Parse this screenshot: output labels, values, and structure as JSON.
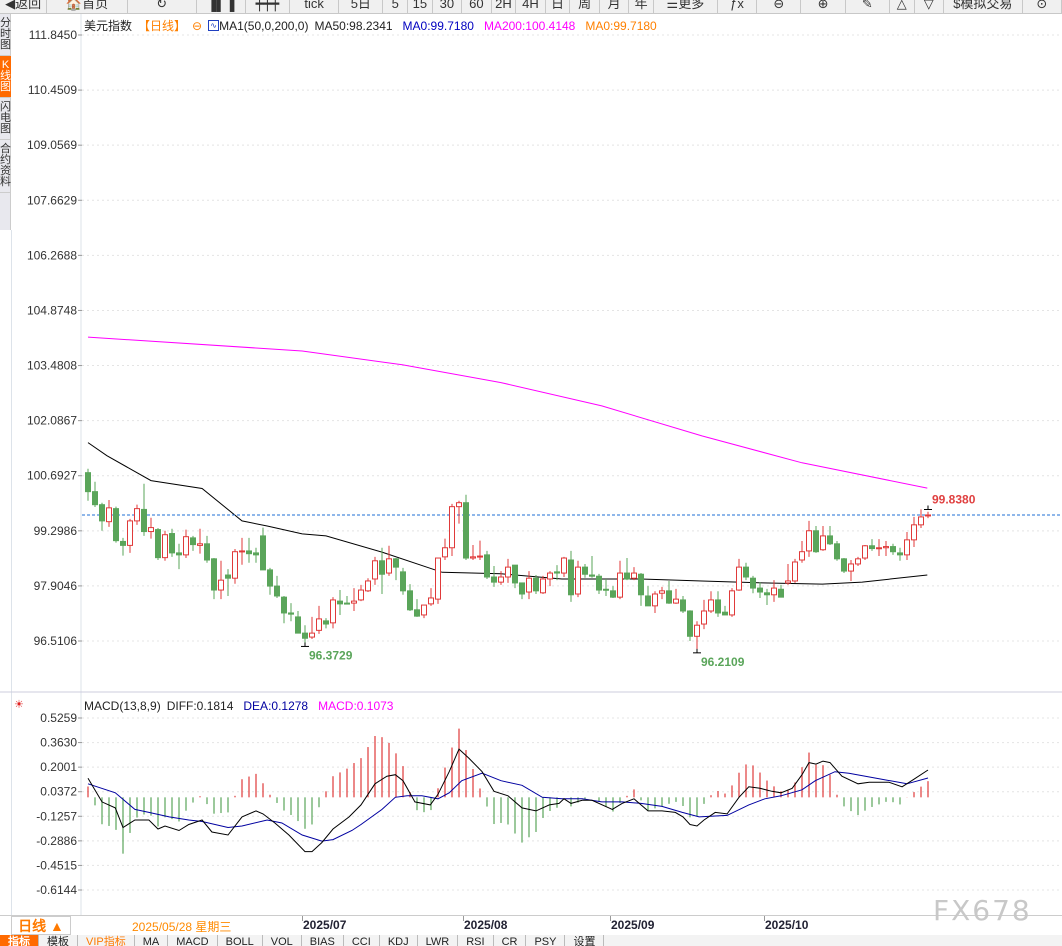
{
  "toolbar": {
    "items": [
      {
        "label": "◀返回",
        "icon": "back-arrow-icon",
        "w": 48
      },
      {
        "label": "🏠首页",
        "icon": "home-icon",
        "w": 82
      },
      {
        "label": "↻",
        "icon": "refresh-icon",
        "w": 70
      },
      {
        "label": "▐▌▐",
        "icon": "bar-chart-icon",
        "w": 50
      },
      {
        "label": "┿┿┿",
        "icon": "candlestick-icon",
        "w": 45
      },
      {
        "label": "tick",
        "w": 50
      },
      {
        "label": "5日",
        "w": 45
      },
      {
        "label": "5",
        "w": 25
      },
      {
        "label": "15",
        "w": 25
      },
      {
        "label": "30",
        "w": 30
      },
      {
        "label": "60",
        "w": 30
      },
      {
        "label": "2H",
        "w": 25
      },
      {
        "label": "4H",
        "w": 30
      },
      {
        "label": "日",
        "w": 25
      },
      {
        "label": "周",
        "w": 30
      },
      {
        "label": "月",
        "w": 30
      },
      {
        "label": "年",
        "w": 25
      },
      {
        "label": "☰更多",
        "icon": "menu-icon",
        "w": 65
      },
      {
        "label": "ƒx",
        "icon": "formula-icon",
        "w": 40
      },
      {
        "label": "⊖",
        "icon": "zoom-out-icon",
        "w": 45
      },
      {
        "label": "⊕",
        "icon": "zoom-in-icon",
        "w": 45
      },
      {
        "label": "✎",
        "icon": "pen-icon",
        "w": 45
      },
      {
        "label": "△",
        "icon": "triangle-icon",
        "w": 25
      },
      {
        "label": "▽",
        "icon": "triangle-down-icon",
        "w": 30
      },
      {
        "label": "$模拟交易",
        "icon": "dollar-icon",
        "w": 80
      },
      {
        "label": "⊙",
        "w": 40
      }
    ]
  },
  "sidebar": [
    {
      "label": "分时图"
    },
    {
      "label": "K线图",
      "active": true
    },
    {
      "label": "闪电图"
    },
    {
      "label": "合约资料"
    }
  ],
  "header": {
    "name": "美元指数",
    "period": "【日线】",
    "ma_label": "MA1(50,0,200,0)",
    "ma50": "MA50:98.2341",
    "ma0a": "MA0:99.7180",
    "ma200": "MA200:100.4148",
    "ma0b": "MA0:99.7180"
  },
  "colors": {
    "up": "#e03a3a",
    "down": "#5aa55a",
    "ma50": "#000000",
    "ma200": "#ff00ff",
    "diff": "#000000",
    "dea": "#0000a0",
    "period": "#ff8000",
    "last_line": "#1f6fd6"
  },
  "price_axis": {
    "ticks": [
      "111.8450",
      "110.4509",
      "109.0569",
      "107.6629",
      "106.2688",
      "104.8748",
      "103.4808",
      "102.0867",
      "100.6927",
      "99.2986",
      "97.9046",
      "96.5106"
    ],
    "range": [
      95.24,
      112.27
    ]
  },
  "annotations": {
    "high": "99.8380",
    "high_value": 99.838,
    "high_index": 120,
    "low1": "96.3729",
    "low1_value": 96.3729,
    "low1_index": 31,
    "low2": "96.2109",
    "low2_value": 96.2109,
    "low2_index": 87,
    "last": 99.7
  },
  "candles_ohlc": [
    [
      100.77,
      100.87,
      100.06,
      100.29
    ],
    [
      100.29,
      100.54,
      99.9,
      99.96
    ],
    [
      99.96,
      100.01,
      99.3,
      99.55
    ],
    [
      99.53,
      100.08,
      99.4,
      99.88
    ],
    [
      99.86,
      99.91,
      99.0,
      99.05
    ],
    [
      99.03,
      99.12,
      98.67,
      98.93
    ],
    [
      98.93,
      99.6,
      98.74,
      99.55
    ],
    [
      99.55,
      99.96,
      99.45,
      99.86
    ],
    [
      99.84,
      100.49,
      99.17,
      99.28
    ],
    [
      99.28,
      99.63,
      99.1,
      99.38
    ],
    [
      99.33,
      99.37,
      98.56,
      98.62
    ],
    [
      98.62,
      99.3,
      98.54,
      99.2
    ],
    [
      99.23,
      99.35,
      98.64,
      98.74
    ],
    [
      98.74,
      98.97,
      98.33,
      98.69
    ],
    [
      98.69,
      99.33,
      98.61,
      99.15
    ],
    [
      99.12,
      99.17,
      98.79,
      98.95
    ],
    [
      98.93,
      99.35,
      98.72,
      98.97
    ],
    [
      98.97,
      99.17,
      98.49,
      98.56
    ],
    [
      98.59,
      98.61,
      97.57,
      97.8
    ],
    [
      97.8,
      98.54,
      97.57,
      98.05
    ],
    [
      98.18,
      98.33,
      97.65,
      98.1
    ],
    [
      98.1,
      98.84,
      97.96,
      98.77
    ],
    [
      98.77,
      99.12,
      98.44,
      98.79
    ],
    [
      98.79,
      99.12,
      98.49,
      98.72
    ],
    [
      98.74,
      98.87,
      98.49,
      98.69
    ],
    [
      99.17,
      99.38,
      98.31,
      98.31
    ],
    [
      98.31,
      98.36,
      97.68,
      97.9
    ],
    [
      97.9,
      98.16,
      97.6,
      97.65
    ],
    [
      97.62,
      97.65,
      96.96,
      97.22
    ],
    [
      97.22,
      97.47,
      97.01,
      97.19
    ],
    [
      97.12,
      97.27,
      96.71,
      96.71
    ],
    [
      96.71,
      96.91,
      96.37,
      96.58
    ],
    [
      96.61,
      97.12,
      96.56,
      96.71
    ],
    [
      96.78,
      97.4,
      96.69,
      97.07
    ],
    [
      97.02,
      97.09,
      96.83,
      96.94
    ],
    [
      96.97,
      97.62,
      96.83,
      97.55
    ],
    [
      97.52,
      97.8,
      97.17,
      97.45
    ],
    [
      97.47,
      97.65,
      97.45,
      97.45
    ],
    [
      97.47,
      97.85,
      97.27,
      97.52
    ],
    [
      97.55,
      97.93,
      97.52,
      97.8
    ],
    [
      97.78,
      98.1,
      97.75,
      98.03
    ],
    [
      98.08,
      98.64,
      97.93,
      98.54
    ],
    [
      98.54,
      98.87,
      97.7,
      98.2
    ],
    [
      98.23,
      98.92,
      98.16,
      98.59
    ],
    [
      98.59,
      98.61,
      98.05,
      98.38
    ],
    [
      98.26,
      98.36,
      97.68,
      97.78
    ],
    [
      97.78,
      97.95,
      97.27,
      97.3
    ],
    [
      97.3,
      97.57,
      97.12,
      97.14
    ],
    [
      97.17,
      97.42,
      97.09,
      97.42
    ],
    [
      97.45,
      97.85,
      97.4,
      97.6
    ],
    [
      97.57,
      98.61,
      97.45,
      98.61
    ],
    [
      98.64,
      99.1,
      98.56,
      98.87
    ],
    [
      98.87,
      99.98,
      98.66,
      99.91
    ],
    [
      99.91,
      100.06,
      99.48,
      100.01
    ],
    [
      100.01,
      100.21,
      98.56,
      98.61
    ],
    [
      98.61,
      98.94,
      98.56,
      98.64
    ],
    [
      98.64,
      99.05,
      98.56,
      98.66
    ],
    [
      98.69,
      98.79,
      98.08,
      98.13
    ],
    [
      98.13,
      98.41,
      97.88,
      98.0
    ],
    [
      98.0,
      98.28,
      97.93,
      98.13
    ],
    [
      98.13,
      98.59,
      97.98,
      98.38
    ],
    [
      98.43,
      98.43,
      97.85,
      97.98
    ],
    [
      97.98,
      97.98,
      97.57,
      97.7
    ],
    [
      97.75,
      98.28,
      97.57,
      98.1
    ],
    [
      98.1,
      98.18,
      97.7,
      97.78
    ],
    [
      97.73,
      98.16,
      97.7,
      98.08
    ],
    [
      98.08,
      98.28,
      97.9,
      98.23
    ],
    [
      98.26,
      98.43,
      98.05,
      98.23
    ],
    [
      98.23,
      98.64,
      98.13,
      98.61
    ],
    [
      98.56,
      98.79,
      97.5,
      97.68
    ],
    [
      97.7,
      98.54,
      97.62,
      98.38
    ],
    [
      98.38,
      98.46,
      98.11,
      98.2
    ],
    [
      98.18,
      98.66,
      98.11,
      98.15
    ],
    [
      98.15,
      98.21,
      97.7,
      97.8
    ],
    [
      97.82,
      98.08,
      97.65,
      97.8
    ],
    [
      97.78,
      97.9,
      97.6,
      97.62
    ],
    [
      97.62,
      98.54,
      97.57,
      98.23
    ],
    [
      98.23,
      98.61,
      98.05,
      98.08
    ],
    [
      98.1,
      98.38,
      98.05,
      98.23
    ],
    [
      98.2,
      98.23,
      97.4,
      97.68
    ],
    [
      97.65,
      97.9,
      97.4,
      97.4
    ],
    [
      97.4,
      97.77,
      97.22,
      97.7
    ],
    [
      97.72,
      97.88,
      97.57,
      97.78
    ],
    [
      97.78,
      98.03,
      97.45,
      97.47
    ],
    [
      97.47,
      97.83,
      97.45,
      97.57
    ],
    [
      97.55,
      97.65,
      97.22,
      97.27
    ],
    [
      97.27,
      97.29,
      96.51,
      96.63
    ],
    [
      96.63,
      97.01,
      96.21,
      96.91
    ],
    [
      96.94,
      97.55,
      96.81,
      97.27
    ],
    [
      97.27,
      97.77,
      97.22,
      97.55
    ],
    [
      97.55,
      97.77,
      97.12,
      97.22
    ],
    [
      97.24,
      97.4,
      97.17,
      97.17
    ],
    [
      97.17,
      97.85,
      97.12,
      97.78
    ],
    [
      97.8,
      98.59,
      97.78,
      98.38
    ],
    [
      98.38,
      98.49,
      98.05,
      98.13
    ],
    [
      98.1,
      98.16,
      97.72,
      97.85
    ],
    [
      97.85,
      98.0,
      97.6,
      97.75
    ],
    [
      97.73,
      97.83,
      97.42,
      97.68
    ],
    [
      97.68,
      98.05,
      97.5,
      97.85
    ],
    [
      97.82,
      97.93,
      97.62,
      97.62
    ],
    [
      97.98,
      98.46,
      97.93,
      98.03
    ],
    [
      98.03,
      98.59,
      97.98,
      98.51
    ],
    [
      98.56,
      99.04,
      98.49,
      98.77
    ],
    [
      98.79,
      99.55,
      98.64,
      99.3
    ],
    [
      99.3,
      99.42,
      98.74,
      98.77
    ],
    [
      98.82,
      99.42,
      98.79,
      99.17
    ],
    [
      99.17,
      99.42,
      98.94,
      98.97
    ],
    [
      98.97,
      99.04,
      98.54,
      98.59
    ],
    [
      98.59,
      98.61,
      98.23,
      98.28
    ],
    [
      98.28,
      98.56,
      98.03,
      98.46
    ],
    [
      98.46,
      98.64,
      98.41,
      98.59
    ],
    [
      98.61,
      98.94,
      98.56,
      98.92
    ],
    [
      98.92,
      99.09,
      98.79,
      98.85
    ],
    [
      98.85,
      99.09,
      98.66,
      98.87
    ],
    [
      98.87,
      99.04,
      98.66,
      98.9
    ],
    [
      98.9,
      98.97,
      98.69,
      98.77
    ],
    [
      98.74,
      98.87,
      98.54,
      98.69
    ],
    [
      98.69,
      99.27,
      98.56,
      99.07
    ],
    [
      99.07,
      99.65,
      98.89,
      99.45
    ],
    [
      99.45,
      99.84,
      99.37,
      99.65
    ],
    [
      99.68,
      99.78,
      99.62,
      99.7
    ]
  ],
  "ma50_points": [
    [
      0,
      101.53
    ],
    [
      2.7,
      101.2
    ],
    [
      9,
      100.57
    ],
    [
      16.3,
      100.37
    ],
    [
      22,
      99.55
    ],
    [
      25.6,
      99.42
    ],
    [
      30.6,
      99.22
    ],
    [
      34,
      99.17
    ],
    [
      42,
      98.76
    ],
    [
      50.6,
      98.25
    ],
    [
      59,
      98.21
    ],
    [
      67.7,
      98.08
    ],
    [
      79,
      98.08
    ],
    [
      87.7,
      98.03
    ],
    [
      96.3,
      97.98
    ],
    [
      104.9,
      97.95
    ],
    [
      110.6,
      98.0
    ],
    [
      119.9,
      98.18
    ]
  ],
  "ma200_points": [
    [
      0,
      104.2
    ],
    [
      30.6,
      103.85
    ],
    [
      44.9,
      103.5
    ],
    [
      59,
      103.05
    ],
    [
      73.4,
      102.46
    ],
    [
      87.7,
      101.7
    ],
    [
      102,
      101.02
    ],
    [
      119.9,
      100.38
    ]
  ],
  "macd": {
    "label": "MACD(13,8,9)",
    "diff_label": "DIFF:0.1814",
    "dea_label": "DEA:0.1278",
    "macd_label": "MACD:0.1073",
    "ticks": [
      "0.5259",
      "0.3630",
      "0.2001",
      "0.0372",
      "-0.1257",
      "-0.2886",
      "-0.4515",
      "-0.6144"
    ],
    "range": [
      -0.6144,
      0.5259
    ],
    "diff_points": [
      [
        0,
        0.126
      ],
      [
        2,
        -0.03
      ],
      [
        3.9,
        -0.07
      ],
      [
        5,
        -0.2
      ],
      [
        6.7,
        -0.15
      ],
      [
        8.7,
        -0.15
      ],
      [
        10,
        -0.21
      ],
      [
        11,
        -0.19
      ],
      [
        13,
        -0.22
      ],
      [
        14.4,
        -0.18
      ],
      [
        16.3,
        -0.15
      ],
      [
        17.7,
        -0.23
      ],
      [
        20,
        -0.25
      ],
      [
        22,
        -0.13
      ],
      [
        24,
        -0.09
      ],
      [
        25,
        -0.11
      ],
      [
        26.7,
        -0.17
      ],
      [
        28.7,
        -0.25
      ],
      [
        31,
        -0.36
      ],
      [
        32,
        -0.36
      ],
      [
        33.4,
        -0.3
      ],
      [
        35,
        -0.21
      ],
      [
        37.3,
        -0.13
      ],
      [
        39,
        -0.05
      ],
      [
        41,
        0.09
      ],
      [
        42.7,
        0.14
      ],
      [
        43.9,
        0.15
      ],
      [
        45,
        0.11
      ],
      [
        46.7,
        -0.03
      ],
      [
        48.9,
        -0.05
      ],
      [
        50,
        0.02
      ],
      [
        51.6,
        0.17
      ],
      [
        53,
        0.32
      ],
      [
        54.4,
        0.26
      ],
      [
        56.3,
        0.17
      ],
      [
        58,
        0.04
      ],
      [
        60,
        0.01
      ],
      [
        62,
        -0.07
      ],
      [
        64,
        -0.09
      ],
      [
        65.9,
        -0.05
      ],
      [
        67.3,
        -0.04
      ],
      [
        68,
        -0.01
      ],
      [
        69,
        -0.04
      ],
      [
        70.6,
        -0.02
      ],
      [
        72,
        -0.02
      ],
      [
        74.9,
        -0.08
      ],
      [
        76.3,
        -0.04
      ],
      [
        78,
        -0.01
      ],
      [
        80,
        -0.09
      ],
      [
        82,
        -0.09
      ],
      [
        83.9,
        -0.1
      ],
      [
        85,
        -0.13
      ],
      [
        86,
        -0.18
      ],
      [
        87,
        -0.19
      ],
      [
        88,
        -0.15
      ],
      [
        89.6,
        -0.1
      ],
      [
        91.3,
        -0.11
      ],
      [
        93,
        0.0
      ],
      [
        94.4,
        0.07
      ],
      [
        96,
        0.06
      ],
      [
        97.7,
        0.04
      ],
      [
        99,
        0.03
      ],
      [
        100.6,
        0.06
      ],
      [
        102,
        0.15
      ],
      [
        103,
        0.23
      ],
      [
        104,
        0.22
      ],
      [
        105,
        0.24
      ],
      [
        106,
        0.23
      ],
      [
        107.7,
        0.14
      ],
      [
        110,
        0.09
      ],
      [
        111.6,
        0.1
      ],
      [
        114.4,
        0.1
      ],
      [
        116.3,
        0.07
      ],
      [
        118,
        0.12
      ],
      [
        120,
        0.1814
      ]
    ],
    "dea_points": [
      [
        0,
        0.09
      ],
      [
        3.9,
        0.03
      ],
      [
        6.7,
        -0.08
      ],
      [
        8.7,
        -0.1
      ],
      [
        11.6,
        -0.13
      ],
      [
        14.4,
        -0.15
      ],
      [
        16.3,
        -0.16
      ],
      [
        20,
        -0.2
      ],
      [
        22,
        -0.19
      ],
      [
        25.6,
        -0.15
      ],
      [
        27.7,
        -0.17
      ],
      [
        30.6,
        -0.25
      ],
      [
        33.4,
        -0.29
      ],
      [
        35,
        -0.28
      ],
      [
        37.7,
        -0.22
      ],
      [
        39,
        -0.18
      ],
      [
        42,
        -0.08
      ],
      [
        43.9,
        0.0
      ],
      [
        45.6,
        0.01
      ],
      [
        47.7,
        0.01
      ],
      [
        50,
        -0.01
      ],
      [
        51.6,
        0.03
      ],
      [
        53.4,
        0.11
      ],
      [
        56.3,
        0.16
      ],
      [
        59,
        0.11
      ],
      [
        62,
        0.08
      ],
      [
        64.9,
        0.0
      ],
      [
        67.7,
        -0.01
      ],
      [
        70.6,
        -0.01
      ],
      [
        73.4,
        -0.03
      ],
      [
        76.3,
        -0.03
      ],
      [
        79,
        -0.04
      ],
      [
        82,
        -0.06
      ],
      [
        84.9,
        -0.1
      ],
      [
        87.3,
        -0.13
      ],
      [
        91.3,
        -0.12
      ],
      [
        94.4,
        -0.05
      ],
      [
        96.7,
        -0.01
      ],
      [
        99,
        0.01
      ],
      [
        102,
        0.05
      ],
      [
        103.9,
        0.11
      ],
      [
        106.7,
        0.17
      ],
      [
        108.7,
        0.16
      ],
      [
        113.4,
        0.12
      ],
      [
        117,
        0.09
      ],
      [
        120,
        0.1278
      ]
    ]
  },
  "date_axis": {
    "period": "日线 ▲",
    "current": "2025/05/28 星期三",
    "labels": [
      {
        "text": "2025/07",
        "index": 31
      },
      {
        "text": "2025/08",
        "index": 54
      },
      {
        "text": "2025/09",
        "index": 75
      },
      {
        "text": "2025/10",
        "index": 97
      }
    ]
  },
  "tabs": [
    {
      "label": "指标",
      "active": true
    },
    {
      "label": "模板"
    },
    {
      "label": "VIP指标",
      "vip": true
    },
    {
      "label": "MA"
    },
    {
      "label": "MACD"
    },
    {
      "label": "BOLL"
    },
    {
      "label": "VOL"
    },
    {
      "label": "BIAS"
    },
    {
      "label": "CCI"
    },
    {
      "label": "KDJ"
    },
    {
      "label": "LWR"
    },
    {
      "label": "RSI"
    },
    {
      "label": "CR"
    },
    {
      "label": "PSY"
    },
    {
      "label": "设置"
    }
  ],
  "watermark": "FX678"
}
